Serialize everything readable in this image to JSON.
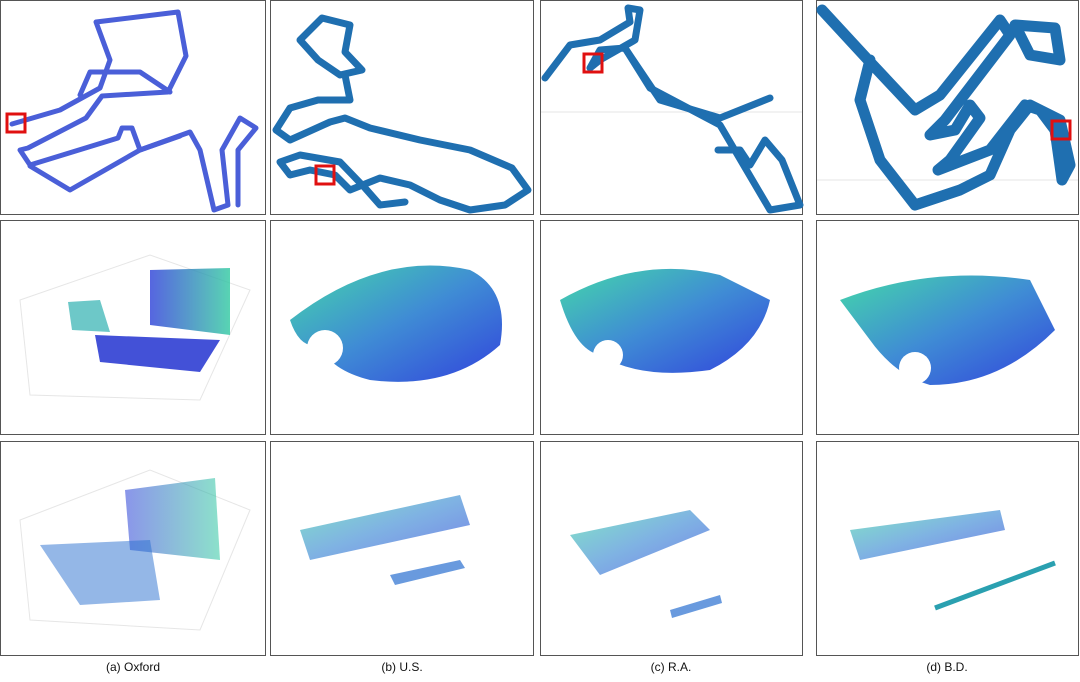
{
  "captions": [
    "(a) Oxford",
    "(b) U.S.",
    "(c) R.A.",
    "(d) B.D."
  ]
}
